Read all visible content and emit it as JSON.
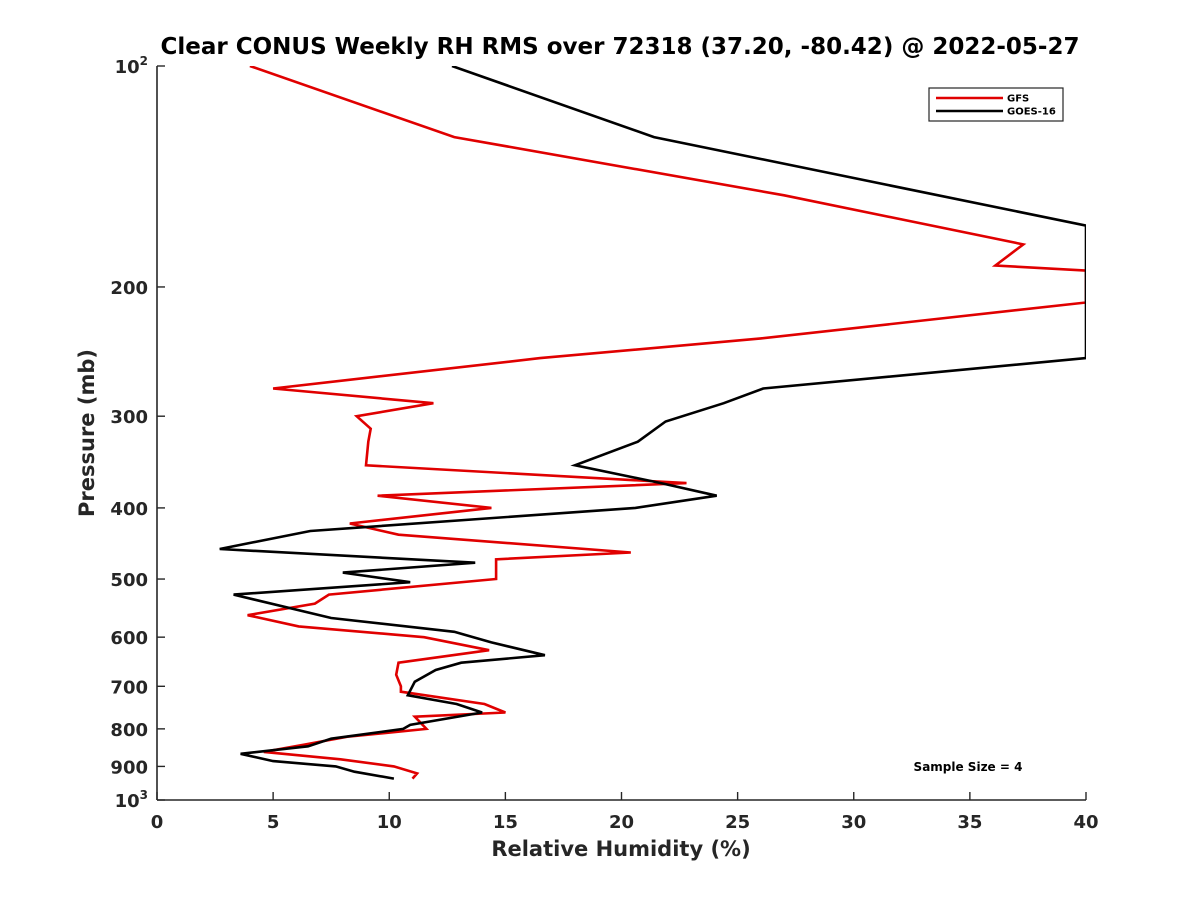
{
  "chart_data": {
    "type": "line",
    "title": "Clear CONUS Weekly RH RMS over 72318 (37.20, -80.42) @ 2022-05-27",
    "xlabel": "Relative Humidity (%)",
    "ylabel": "Pressure (mb)",
    "xlim": [
      0,
      40
    ],
    "ylim": [
      100,
      1000
    ],
    "y_scale": "log",
    "y_reversed": true,
    "grid": false,
    "legend_position": "top-right",
    "x_ticks": [
      "0",
      "5",
      "10",
      "15",
      "20",
      "25",
      "30",
      "35",
      "40"
    ],
    "y_ticks": [
      {
        "value": 100,
        "base": "10",
        "exp": "2"
      },
      {
        "value": 200,
        "label": "200"
      },
      {
        "value": 300,
        "label": "300"
      },
      {
        "value": 400,
        "label": "400"
      },
      {
        "value": 500,
        "label": "500"
      },
      {
        "value": 600,
        "label": "600"
      },
      {
        "value": 700,
        "label": "700"
      },
      {
        "value": 800,
        "label": "800"
      },
      {
        "value": 900,
        "label": "900"
      },
      {
        "value": 1000,
        "base": "10",
        "exp": "3"
      }
    ],
    "annotation": "Sample Size = 4",
    "series": [
      {
        "name": "GFS",
        "color": "#e00000",
        "points": [
          [
            4.0,
            100
          ],
          [
            12.8,
            125
          ],
          [
            27.0,
            150
          ],
          [
            37.3,
            175
          ],
          [
            36.1,
            187
          ],
          [
            40,
            190
          ],
          [
            40,
            210
          ],
          [
            26.0,
            235
          ],
          [
            16.5,
            250
          ],
          [
            5.0,
            275
          ],
          [
            11.9,
            288
          ],
          [
            8.6,
            300
          ],
          [
            9.2,
            312
          ],
          [
            9.1,
            325
          ],
          [
            9.0,
            350
          ],
          [
            22.8,
            370
          ],
          [
            9.5,
            385
          ],
          [
            14.4,
            400
          ],
          [
            8.3,
            420
          ],
          [
            10.4,
            435
          ],
          [
            20.4,
            460
          ],
          [
            14.6,
            470
          ],
          [
            14.6,
            500
          ],
          [
            7.4,
            525
          ],
          [
            6.8,
            540
          ],
          [
            3.9,
            560
          ],
          [
            6.1,
            580
          ],
          [
            11.5,
            600
          ],
          [
            14.3,
            625
          ],
          [
            10.4,
            650
          ],
          [
            10.3,
            675
          ],
          [
            10.5,
            700
          ],
          [
            10.5,
            712
          ],
          [
            14.1,
            740
          ],
          [
            15.0,
            760
          ],
          [
            11.1,
            770
          ],
          [
            11.6,
            800
          ],
          [
            8.2,
            820
          ],
          [
            6.4,
            840
          ],
          [
            4.6,
            860
          ],
          [
            7.9,
            880
          ],
          [
            10.2,
            900
          ],
          [
            11.2,
            920
          ],
          [
            11.0,
            935
          ]
        ]
      },
      {
        "name": "GOES-16",
        "color": "#000000",
        "points": [
          [
            12.7,
            100
          ],
          [
            21.4,
            125
          ],
          [
            40,
            165
          ],
          [
            40,
            250
          ],
          [
            26.1,
            275
          ],
          [
            24.4,
            288
          ],
          [
            21.9,
            305
          ],
          [
            20.7,
            325
          ],
          [
            18.0,
            350
          ],
          [
            21.7,
            370
          ],
          [
            24.1,
            385
          ],
          [
            20.6,
            400
          ],
          [
            6.6,
            430
          ],
          [
            2.7,
            455
          ],
          [
            13.7,
            475
          ],
          [
            8.0,
            490
          ],
          [
            10.9,
            505
          ],
          [
            3.3,
            525
          ],
          [
            7.5,
            565
          ],
          [
            12.8,
            590
          ],
          [
            14.4,
            610
          ],
          [
            16.7,
            635
          ],
          [
            13.1,
            650
          ],
          [
            12.0,
            665
          ],
          [
            11.1,
            690
          ],
          [
            10.8,
            720
          ],
          [
            12.9,
            740
          ],
          [
            14.0,
            760
          ],
          [
            10.9,
            790
          ],
          [
            10.6,
            800
          ],
          [
            7.5,
            825
          ],
          [
            6.5,
            845
          ],
          [
            3.6,
            865
          ],
          [
            5.0,
            885
          ],
          [
            7.7,
            900
          ],
          [
            8.5,
            915
          ],
          [
            10.2,
            935
          ]
        ]
      }
    ]
  }
}
